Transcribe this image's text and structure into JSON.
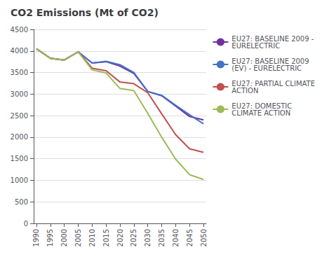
{
  "chart_data": {
    "type": "line",
    "title": "CO2 Emissions (Mt of CO2)",
    "x": [
      1990,
      1995,
      2000,
      2005,
      2010,
      2015,
      2020,
      2025,
      2030,
      2035,
      2040,
      2045,
      2050
    ],
    "series": [
      {
        "name": "EU27: BASELINE 2009 -\nEURELECTRIC",
        "color": "#7030A0",
        "values": [
          4050,
          3830,
          3790,
          3980,
          3720,
          3750,
          3650,
          3480,
          3060,
          2960,
          2720,
          2480,
          2400
        ]
      },
      {
        "name": "EU27: BASELINE 2009\n(EV) - EURELECTRIC",
        "color": "#4472C4",
        "values": [
          4050,
          3830,
          3790,
          3980,
          3720,
          3760,
          3680,
          3500,
          3060,
          2970,
          2740,
          2520,
          2310
        ]
      },
      {
        "name": "EU27: PARTIAL CLIMATE\nACTION",
        "color": "#C0504D",
        "values": [
          4050,
          3830,
          3790,
          3980,
          3600,
          3540,
          3280,
          3240,
          3030,
          2540,
          2060,
          1730,
          1650
        ]
      },
      {
        "name": "EU27: DOMESTIC\nCLIMATE ACTION",
        "color": "#9BBB59",
        "values": [
          4050,
          3830,
          3790,
          3980,
          3560,
          3490,
          3130,
          3080,
          2550,
          2000,
          1490,
          1130,
          1020
        ]
      }
    ],
    "xlim": [
      1989,
      2051
    ],
    "xticks": [
      1990,
      1995,
      2000,
      2005,
      2010,
      2015,
      2020,
      2025,
      2030,
      2035,
      2040,
      2045,
      2050
    ],
    "ylim": [
      0,
      4500
    ],
    "yticks": [
      0,
      500,
      1000,
      1500,
      2000,
      2500,
      3000,
      3500,
      4000,
      4500
    ],
    "grid": true,
    "legend": "right"
  }
}
